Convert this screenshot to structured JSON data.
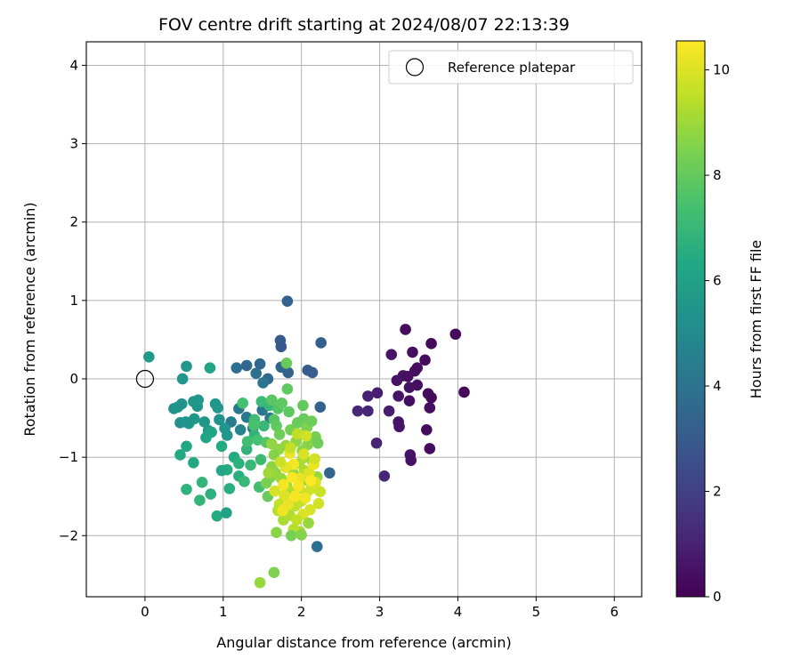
{
  "chart_data": {
    "type": "scatter",
    "title": "FOV centre drift starting at 2024/08/07 22:13:39",
    "xlabel": "Angular distance from reference (arcmin)",
    "ylabel": "Rotation from reference (arcmin)",
    "xlim": [
      -0.75,
      6.35
    ],
    "ylim": [
      -2.78,
      4.3
    ],
    "xticks": [
      0,
      1,
      2,
      3,
      4,
      5,
      6
    ],
    "yticks": [
      -2,
      -1,
      0,
      1,
      2,
      3,
      4
    ],
    "grid": true,
    "legend": {
      "position": "top-right",
      "entries": [
        "Reference platepar"
      ]
    },
    "reference_point": {
      "x": 0,
      "y": 0,
      "label": "Reference platepar"
    },
    "colorbar": {
      "label": "Hours from first FF file",
      "min": 0,
      "max": 10.55,
      "ticks": [
        0,
        2,
        4,
        6,
        8,
        10
      ],
      "colormap": "viridis"
    },
    "points": [
      [
        3.33,
        0.63,
        0.3
      ],
      [
        3.97,
        0.57,
        0.2
      ],
      [
        3.66,
        0.45,
        0.3
      ],
      [
        3.42,
        0.34,
        0.4
      ],
      [
        3.15,
        0.31,
        0.6
      ],
      [
        3.58,
        0.24,
        0.3
      ],
      [
        3.48,
        0.14,
        0.5
      ],
      [
        3.45,
        0.1,
        0.4
      ],
      [
        3.3,
        0.04,
        0.5
      ],
      [
        3.36,
        0.03,
        0.4
      ],
      [
        3.22,
        -0.02,
        0.5
      ],
      [
        3.48,
        -0.08,
        0.4
      ],
      [
        3.38,
        -0.11,
        0.5
      ],
      [
        3.62,
        -0.19,
        0.3
      ],
      [
        4.08,
        -0.17,
        0.2
      ],
      [
        3.66,
        -0.24,
        0.3
      ],
      [
        2.97,
        -0.18,
        0.9
      ],
      [
        2.85,
        -0.22,
        1.0
      ],
      [
        3.24,
        -0.22,
        0.6
      ],
      [
        3.38,
        -0.28,
        0.4
      ],
      [
        3.64,
        -0.37,
        0.4
      ],
      [
        2.72,
        -0.41,
        1.2
      ],
      [
        2.85,
        -0.41,
        1.1
      ],
      [
        3.12,
        -0.41,
        0.9
      ],
      [
        3.24,
        -0.55,
        0.6
      ],
      [
        3.25,
        -0.61,
        0.6
      ],
      [
        3.6,
        -0.65,
        0.3
      ],
      [
        2.96,
        -0.82,
        1.0
      ],
      [
        3.64,
        -0.89,
        0.3
      ],
      [
        3.39,
        -0.97,
        0.5
      ],
      [
        3.4,
        -1.04,
        0.5
      ],
      [
        3.06,
        -1.24,
        1.2
      ],
      [
        1.82,
        0.99,
        3.3
      ],
      [
        1.73,
        0.49,
        3.0
      ],
      [
        1.74,
        0.41,
        2.9
      ],
      [
        2.25,
        0.46,
        3.2
      ],
      [
        2.08,
        0.11,
        3.0
      ],
      [
        2.14,
        0.08,
        3.1
      ],
      [
        1.83,
        0.08,
        3.3
      ],
      [
        1.74,
        0.15,
        3.4
      ],
      [
        1.3,
        0.17,
        3.5
      ],
      [
        1.47,
        0.19,
        3.6
      ],
      [
        1.17,
        0.14,
        3.8
      ],
      [
        1.42,
        0.07,
        3.9
      ],
      [
        1.57,
        0.0,
        3.6
      ],
      [
        1.51,
        -0.05,
        4.1
      ],
      [
        2.24,
        -0.36,
        3.3
      ],
      [
        2.36,
        -1.2,
        3.5
      ],
      [
        2.2,
        -2.14,
        3.8
      ],
      [
        1.2,
        -0.38,
        4.2
      ],
      [
        1.3,
        -0.49,
        4.3
      ],
      [
        1.1,
        -0.55,
        4.4
      ],
      [
        1.5,
        -0.4,
        4.1
      ],
      [
        1.6,
        -0.5,
        4.3
      ],
      [
        1.38,
        -0.63,
        4.6
      ],
      [
        1.22,
        -0.65,
        4.7
      ],
      [
        0.37,
        -0.38,
        5.3
      ],
      [
        0.42,
        -0.36,
        5.4
      ],
      [
        0.47,
        -0.32,
        5.3
      ],
      [
        0.45,
        -0.56,
        5.2
      ],
      [
        0.52,
        -0.55,
        5.4
      ],
      [
        0.56,
        -0.57,
        5.4
      ],
      [
        0.63,
        -0.51,
        5.5
      ],
      [
        0.67,
        -0.35,
        5.4
      ],
      [
        0.62,
        -0.29,
        5.5
      ],
      [
        0.68,
        -0.27,
        5.6
      ],
      [
        0.76,
        -0.55,
        5.5
      ],
      [
        0.81,
        -0.66,
        5.7
      ],
      [
        0.9,
        -0.32,
        5.5
      ],
      [
        0.93,
        -0.37,
        5.6
      ],
      [
        0.95,
        -0.52,
        5.3
      ],
      [
        1.02,
        -0.63,
        5.4
      ],
      [
        1.05,
        -0.72,
        5.5
      ],
      [
        0.48,
        0.0,
        5.5
      ],
      [
        0.53,
        0.16,
        5.6
      ],
      [
        0.05,
        0.28,
        5.7
      ],
      [
        0.83,
        0.14,
        6.2
      ],
      [
        0.45,
        -0.97,
        6.4
      ],
      [
        0.53,
        -0.86,
        6.3
      ],
      [
        0.62,
        -1.07,
        6.3
      ],
      [
        0.78,
        -0.75,
        6.2
      ],
      [
        0.85,
        -0.68,
        6.1
      ],
      [
        0.98,
        -0.86,
        6.4
      ],
      [
        1.05,
        -1.16,
        6.5
      ],
      [
        0.98,
        -1.17,
        6.3
      ],
      [
        1.14,
        -1.0,
        6.4
      ],
      [
        0.53,
        -1.41,
        6.8
      ],
      [
        0.73,
        -1.32,
        6.9
      ],
      [
        0.7,
        -1.55,
        6.9
      ],
      [
        0.84,
        -1.47,
        6.7
      ],
      [
        0.92,
        -1.75,
        6.5
      ],
      [
        1.04,
        -1.71,
        6.0
      ],
      [
        1.08,
        -1.4,
        6.6
      ],
      [
        1.2,
        -1.08,
        6.7
      ],
      [
        1.2,
        -1.24,
        6.6
      ],
      [
        1.3,
        -0.9,
        6.8
      ],
      [
        1.35,
        -1.1,
        7.0
      ],
      [
        1.4,
        -0.72,
        6.8
      ],
      [
        1.27,
        -1.31,
        7.0
      ],
      [
        1.46,
        -1.38,
        7.3
      ],
      [
        1.48,
        -1.03,
        7.1
      ],
      [
        1.52,
        -0.6,
        7.0
      ],
      [
        1.59,
        -0.34,
        7.0
      ],
      [
        1.49,
        -0.29,
        7.1
      ],
      [
        1.25,
        -0.31,
        7.4
      ],
      [
        1.4,
        -0.52,
        7.2
      ],
      [
        1.31,
        -0.8,
        7.3
      ],
      [
        1.44,
        -0.78,
        7.4
      ],
      [
        1.39,
        -0.59,
        7.5
      ],
      [
        1.55,
        -0.81,
        7.7
      ],
      [
        1.65,
        -0.52,
        7.8
      ],
      [
        1.7,
        -0.38,
        7.7
      ],
      [
        1.82,
        -0.13,
        7.9
      ],
      [
        1.81,
        0.2,
        8.1
      ],
      [
        1.75,
        -0.31,
        7.9
      ],
      [
        1.62,
        -0.27,
        7.8
      ],
      [
        1.68,
        -0.6,
        7.9
      ],
      [
        1.72,
        -0.71,
        8.2
      ],
      [
        1.84,
        -0.42,
        7.9
      ],
      [
        1.86,
        -0.65,
        8.3
      ],
      [
        1.95,
        -0.56,
        8.1
      ],
      [
        2.02,
        -0.34,
        8.0
      ],
      [
        2.03,
        -0.51,
        8.1
      ],
      [
        2.07,
        -0.62,
        8.5
      ],
      [
        2.13,
        -0.54,
        8.2
      ],
      [
        2.18,
        -0.74,
        8.4
      ],
      [
        2.21,
        -0.82,
        8.2
      ],
      [
        2.08,
        -0.84,
        8.6
      ],
      [
        2.01,
        -0.92,
        8.7
      ],
      [
        1.93,
        -0.8,
        8.8
      ],
      [
        1.8,
        -0.85,
        8.9
      ],
      [
        1.71,
        -0.9,
        8.8
      ],
      [
        1.65,
        -0.97,
        8.6
      ],
      [
        1.62,
        -1.12,
        8.7
      ],
      [
        1.6,
        -1.26,
        8.5
      ],
      [
        1.55,
        -1.33,
        8.4
      ],
      [
        1.67,
        -1.2,
        8.8
      ],
      [
        1.74,
        -1.27,
        8.9
      ],
      [
        1.81,
        -1.36,
        9.0
      ],
      [
        1.9,
        -1.21,
        9.0
      ],
      [
        1.97,
        -1.08,
        9.1
      ],
      [
        2.02,
        -1.01,
        9.2
      ],
      [
        2.04,
        -1.17,
        9.3
      ],
      [
        2.14,
        -1.05,
        9.0
      ],
      [
        2.2,
        -1.25,
        8.9
      ],
      [
        2.08,
        -1.3,
        9.1
      ],
      [
        1.97,
        -1.39,
        9.4
      ],
      [
        1.86,
        -1.44,
        9.3
      ],
      [
        1.78,
        -1.55,
        9.5
      ],
      [
        1.72,
        -1.6,
        9.6
      ],
      [
        1.7,
        -1.68,
        9.4
      ],
      [
        1.77,
        -1.8,
        9.2
      ],
      [
        1.85,
        -1.74,
        9.3
      ],
      [
        1.92,
        -1.62,
        9.5
      ],
      [
        2.0,
        -1.56,
        9.6
      ],
      [
        2.06,
        -1.46,
        9.7
      ],
      [
        2.13,
        -1.4,
        9.8
      ],
      [
        2.18,
        -1.32,
        9.9
      ],
      [
        2.24,
        -1.44,
        9.7
      ],
      [
        2.22,
        -1.59,
        9.8
      ],
      [
        2.11,
        -1.67,
        9.9
      ],
      [
        2.02,
        -1.73,
        10.0
      ],
      [
        1.94,
        -1.8,
        9.6
      ],
      [
        2.09,
        -1.84,
        8.9
      ],
      [
        1.98,
        -1.95,
        9.2
      ],
      [
        1.9,
        -1.92,
        9.4
      ],
      [
        1.87,
        -2.0,
        8.4
      ],
      [
        2.0,
        -1.99,
        8.6
      ],
      [
        1.68,
        -1.96,
        8.7
      ],
      [
        1.47,
        -2.6,
        8.9
      ],
      [
        1.65,
        -2.47,
        8.5
      ],
      [
        1.57,
        -1.5,
        8.1
      ],
      [
        1.58,
        -1.2,
        9.0
      ],
      [
        1.62,
        -0.83,
        8.8
      ],
      [
        1.95,
        -0.7,
        9.5
      ],
      [
        2.06,
        -0.73,
        9.8
      ],
      [
        2.1,
        -1.2,
        10.0
      ],
      [
        1.98,
        -1.27,
        10.2
      ],
      [
        2.16,
        -1.09,
        10.3
      ],
      [
        1.9,
        -1.09,
        10.4
      ],
      [
        1.8,
        -1.13,
        10.1
      ],
      [
        1.85,
        -0.95,
        10.2
      ],
      [
        1.96,
        -1.37,
        10.4
      ],
      [
        2.05,
        -1.52,
        10.3
      ],
      [
        1.78,
        -1.48,
        10.0
      ],
      [
        1.83,
        -1.6,
        10.2
      ],
      [
        2.12,
        -1.3,
        10.5
      ],
      [
        1.92,
        -1.5,
        10.4
      ],
      [
        1.76,
        -1.68,
        10.3
      ],
      [
        1.88,
        -1.26,
        10.5
      ],
      [
        1.77,
        -1.35,
        10.4
      ],
      [
        1.66,
        -1.43,
        9.9
      ],
      [
        1.73,
        -1.06,
        9.7
      ],
      [
        1.86,
        -0.88,
        9.6
      ],
      [
        2.03,
        -0.96,
        9.9
      ],
      [
        2.17,
        -1.02,
        9.8
      ]
    ]
  }
}
